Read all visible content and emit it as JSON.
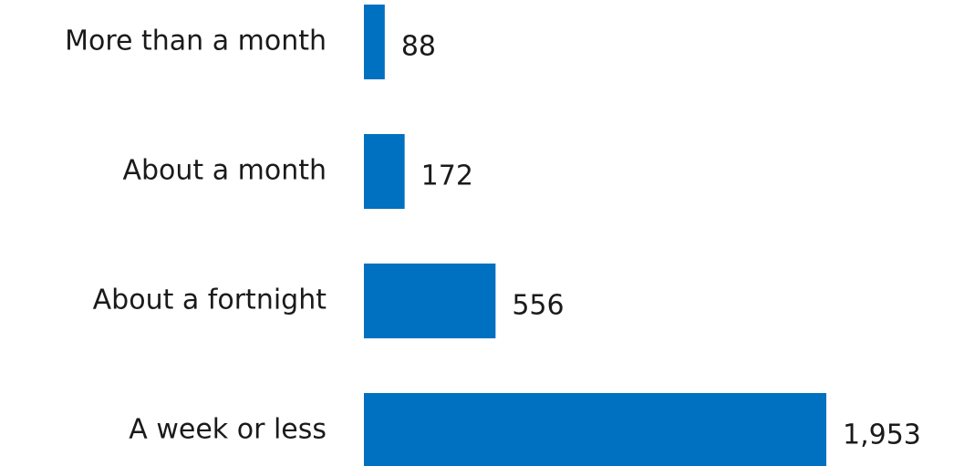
{
  "chart_data": {
    "type": "barh",
    "categories": [
      "More than a month",
      "About a month",
      "About a fortnight",
      "A week or less"
    ],
    "values": [
      88,
      172,
      556,
      1953
    ],
    "value_labels": [
      "88",
      "172",
      "556",
      "1,953"
    ],
    "color": "#0070c0"
  }
}
